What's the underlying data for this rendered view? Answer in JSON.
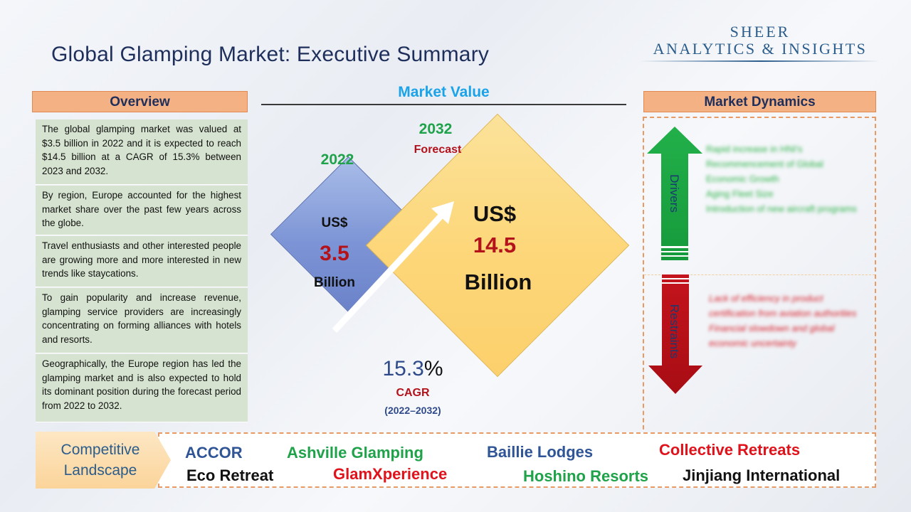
{
  "header": {
    "title": "Global Glamping Market: Executive Summary",
    "logo_line1": "SHEER",
    "logo_line2": "ANALYTICS & INSIGHTS"
  },
  "overview": {
    "title": "Overview",
    "paragraphs": [
      "The global glamping market was valued at $3.5 billion in 2022 and it is expected to reach $14.5 billion at a CAGR of 15.3% between 2023 and 2032.",
      "By region, Europe accounted for the highest market share over the past few years across the globe.",
      "Travel enthusiasts and other interested people are growing more and more interested in new trends like staycations.",
      "To gain popularity and increase revenue, glamping service providers are increasingly concentrating on forming alliances with hotels and resorts.",
      "Geographically, the Europe region has led the glamping market and is also expected to hold its dominant position during the forecast period from 2022 to 2032."
    ]
  },
  "market_value": {
    "title": "Market Value",
    "base": {
      "year": "2022",
      "currency": "US$",
      "value": "3.5",
      "unit": "Billion"
    },
    "forecast": {
      "year": "2032",
      "label": "Forecast",
      "currency": "US$",
      "value": "14.5",
      "unit": "Billion"
    },
    "cagr": {
      "value": "15.3",
      "percent_sign": "%",
      "label": "CAGR",
      "period": "(2022–2032)"
    }
  },
  "market_dynamics": {
    "title": "Market Dynamics",
    "drivers_label": "Drivers",
    "restraints_label": "Restraints",
    "drivers": [
      "Rapid increase in HNI's",
      "Recommencement of Global Economic Growth",
      "Aging Fleet Size",
      "Introduction of new aircraft programs"
    ],
    "restraints": [
      "Lack of efficiency in product certification from aviation authorities",
      "Financial slowdown and global economic uncertainty"
    ]
  },
  "competitive_landscape": {
    "title_line1": "Competitive",
    "title_line2": "Landscape",
    "companies": {
      "accor": "ACCOR",
      "ashville": "Ashville Glamping",
      "baillie": "Baillie Lodges",
      "collective": "Collective Retreats",
      "eco": "Eco Retreat",
      "glamx": "GlamXperience",
      "hoshino": "Hoshino Resorts",
      "jinjiang": "Jinjiang International"
    }
  },
  "colors": {
    "title": "#1f2f5c",
    "header_fill": "#f4b183",
    "overview_fill": "#d6e3d0",
    "accent_blue": "#1aa3e8",
    "year_green": "#1fa24a",
    "value_red": "#b3121b",
    "driver_arrow": "#1fae4b",
    "restraint_arrow": "#c0121a"
  }
}
